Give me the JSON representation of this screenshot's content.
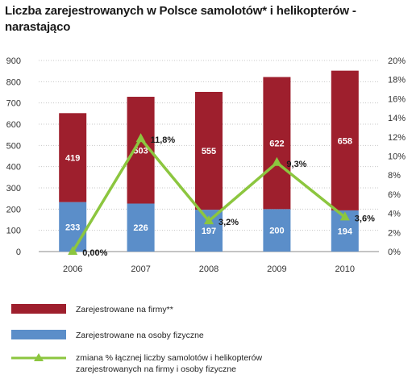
{
  "chart_data": {
    "type": "bar",
    "stacked": true,
    "title": "Liczba zarejestrowanych w Polsce samolotów* i helikopterów - narastająco",
    "categories": [
      "2006",
      "2007",
      "2008",
      "2009",
      "2010"
    ],
    "series": [
      {
        "name": "Zarejestrowane na osoby fizyczne",
        "type": "bar",
        "axis": "left",
        "color": "#5b8ec9",
        "values": [
          233,
          226,
          197,
          200,
          194
        ]
      },
      {
        "name": "Zarejestrowane na firmy**",
        "type": "bar",
        "axis": "left",
        "color": "#9e1f2d",
        "values": [
          419,
          503,
          555,
          622,
          658
        ]
      },
      {
        "name": "zmiana % łącznej liczby samolotów i helikopterów zarejestrowanych na firmy i osoby fizyczne",
        "type": "line",
        "axis": "right",
        "color": "#8cc63f",
        "values": [
          0.0,
          11.8,
          3.2,
          9.3,
          3.6
        ],
        "labels": [
          "0,00%",
          "11,8%",
          "3,2%",
          "9,3%",
          "3,6%"
        ]
      }
    ],
    "ylim": [
      0,
      900
    ],
    "yticks": [
      "0",
      "100",
      "200",
      "300",
      "400",
      "500",
      "600",
      "700",
      "800",
      "900"
    ],
    "y2lim": [
      0,
      20
    ],
    "y2ticks": [
      "0%",
      "2%",
      "4%",
      "6%",
      "8%",
      "10%",
      "12%",
      "14%",
      "16%",
      "18%",
      "20%"
    ],
    "grid": true,
    "legend_position": "bottom"
  },
  "legend": [
    {
      "label": "Zarejestrowane na firmy**",
      "color": "#9e1f2d",
      "kind": "bar"
    },
    {
      "label": "Zarejestrowane na osoby fizyczne",
      "color": "#5b8ec9",
      "kind": "bar"
    },
    {
      "label": "zmiana % łącznej liczby samolotów i helikopterów zarejestrowanych na firmy i osoby fizyczne",
      "color": "#8cc63f",
      "kind": "line"
    }
  ]
}
